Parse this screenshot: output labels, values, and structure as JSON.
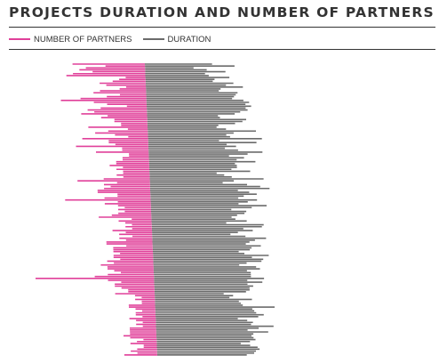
{
  "title": "PROJECTS DURATION AND NUMBER OF PARTNERS",
  "legend": {
    "partners_label": "NUMBER OF PARTNERS",
    "duration_label": "DURATION"
  },
  "colors": {
    "partners": "#e0409a",
    "duration": "#6b6b6b",
    "rule": "#333333",
    "text": "#333333"
  },
  "chart_data": {
    "type": "bar",
    "orientation": "diverging horizontal",
    "note_axes": "no axes or tick labels are shown; values are relative lengths",
    "series": [
      {
        "name": "NUMBER OF PARTNERS",
        "values": [
          11,
          6,
          9,
          10,
          8,
          11,
          12,
          3,
          4,
          5,
          7,
          6,
          3,
          4,
          7,
          8,
          4,
          6,
          10,
          13,
          8,
          6,
          3,
          7,
          9,
          8,
          10,
          6,
          7,
          5,
          5,
          4,
          4,
          9,
          3,
          6,
          8,
          5,
          3,
          10,
          6,
          6,
          5,
          11,
          4,
          4,
          8,
          3,
          3,
          4,
          4,
          5,
          5,
          6,
          4,
          5,
          4,
          4,
          5,
          4,
          7,
          11,
          5,
          7,
          6,
          7,
          8,
          8,
          5,
          5,
          7,
          13,
          5,
          7,
          5,
          4,
          5,
          4,
          5,
          6,
          8,
          3,
          5,
          4,
          3,
          4,
          3,
          6,
          4,
          5,
          3,
          5,
          4,
          7,
          7,
          4,
          6,
          6,
          6,
          5,
          6,
          6,
          5,
          7,
          6,
          8,
          7,
          7,
          6,
          5,
          7,
          9,
          18,
          7,
          5,
          6,
          6,
          5,
          4,
          4,
          6,
          3,
          2,
          3,
          2,
          2,
          4,
          4,
          3,
          2,
          3,
          3,
          2,
          4,
          3,
          2,
          3,
          2,
          4,
          4,
          4,
          4,
          5,
          4,
          2,
          3,
          4,
          2,
          2,
          3,
          4,
          3,
          5,
          4
        ]
      },
      {
        "name": "DURATION",
        "values": [
          36,
          48,
          26,
          33,
          43,
          32,
          34,
          45,
          37,
          36,
          47,
          43,
          52,
          40,
          39,
          49,
          48,
          47,
          46,
          52,
          55,
          53,
          56,
          53,
          54,
          50,
          47,
          38,
          39,
          53,
          51,
          47,
          38,
          37,
          42,
          58,
          46,
          42,
          44,
          61,
          38,
          58,
          42,
          47,
          41,
          48,
          61,
          53,
          43,
          51,
          47,
          57,
          46,
          47,
          47,
          44,
          54,
          36,
          40,
          44,
          61,
          45,
          39,
          52,
          59,
          64,
          47,
          53,
          57,
          50,
          47,
          57,
          52,
          47,
          62,
          54,
          43,
          51,
          50,
          46,
          43,
          45,
          51,
          40,
          60,
          59,
          49,
          54,
          46,
          42,
          50,
          61,
          55,
          52,
          50,
          58,
          53,
          52,
          46,
          49,
          62,
          53,
          59,
          58,
          50,
          46,
          55,
          57,
          50,
          52,
          52,
          52,
          59,
          50,
          58,
          50,
          53,
          51,
          51,
          49,
          37,
          42,
          40,
          52,
          45,
          46,
          47,
          64,
          52,
          53,
          54,
          58,
          55,
          44,
          49,
          52,
          51,
          63,
          55,
          49,
          60,
          52,
          51,
          52,
          53,
          50,
          45,
          50,
          54,
          55,
          53,
          52,
          48,
          54
        ]
      }
    ]
  }
}
